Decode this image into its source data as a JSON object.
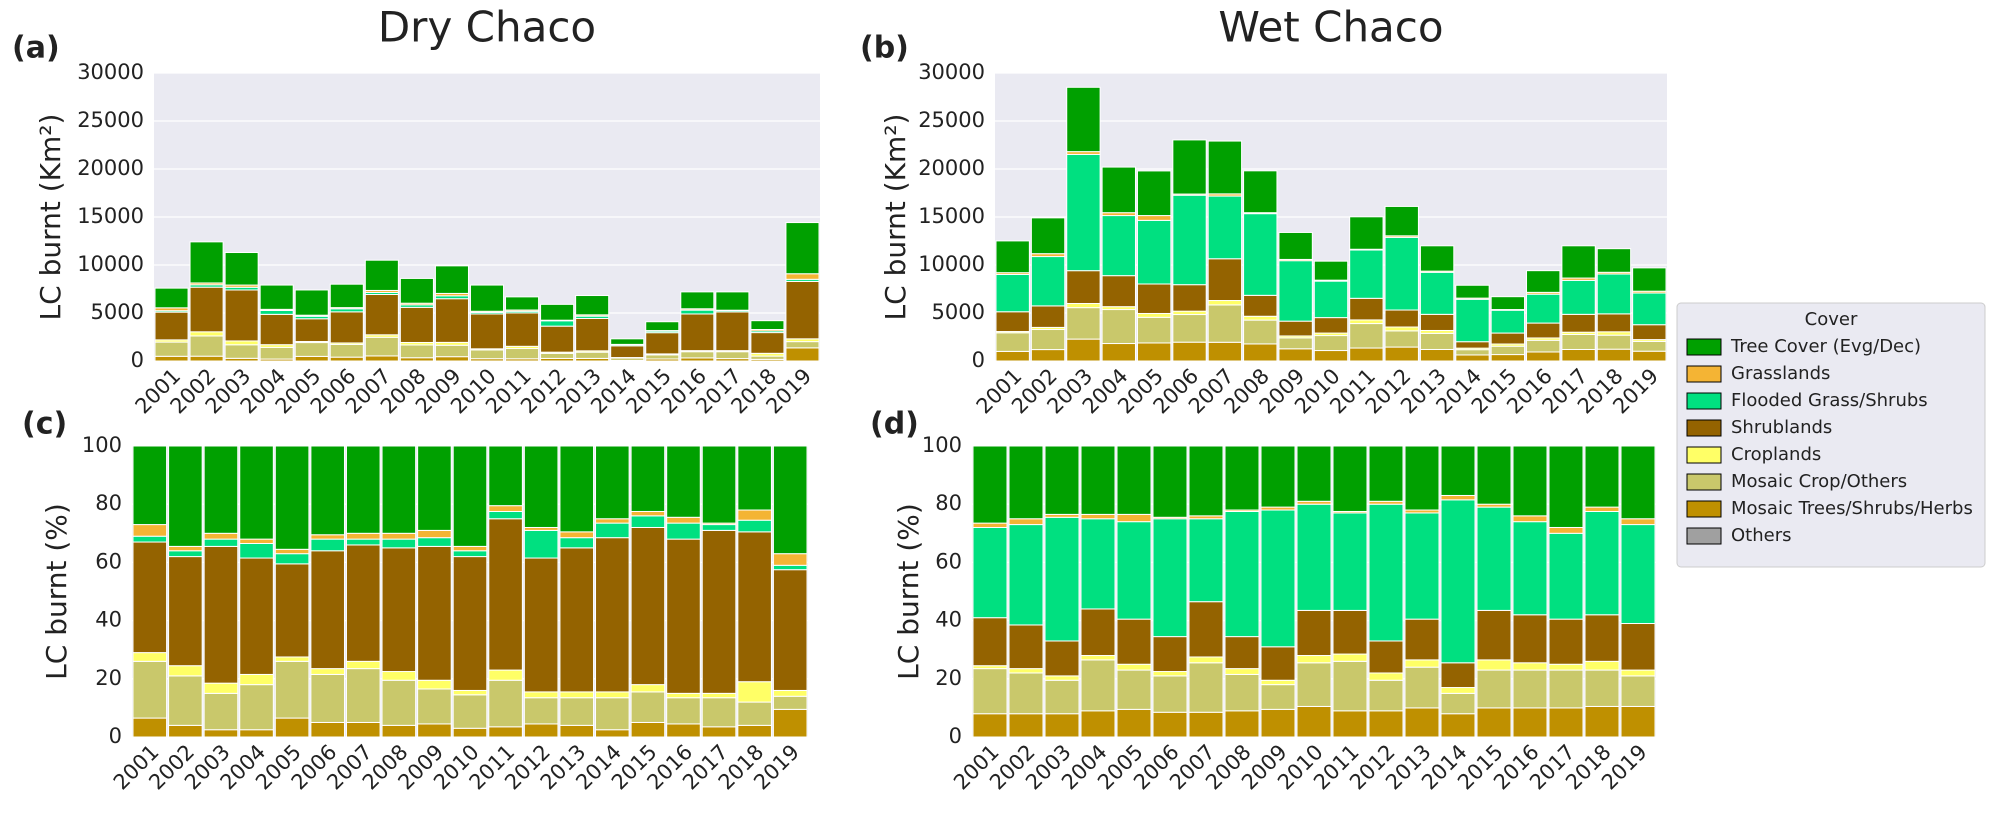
{
  "chart_data": [
    {
      "type": "bar",
      "stacked": true,
      "panel_label": "(a)",
      "title": "Dry Chaco",
      "ylabel": "LC burnt (Km²)",
      "categories": [
        "2001",
        "2002",
        "2003",
        "2004",
        "2005",
        "2006",
        "2007",
        "2008",
        "2009",
        "2010",
        "2011",
        "2012",
        "2013",
        "2014",
        "2015",
        "2016",
        "2017",
        "2018",
        "2019"
      ],
      "ylim": [
        0,
        30000
      ],
      "yticks": [
        0,
        5000,
        10000,
        15000,
        20000,
        25000,
        30000
      ],
      "grid": true,
      "series": [
        {
          "color": "#a0a0a0",
          "values": [
            0,
            0,
            0,
            0,
            0,
            0,
            0,
            0,
            0,
            0,
            0,
            0,
            0,
            0,
            0,
            0,
            0,
            0,
            0
          ]
        },
        {
          "color": "#bf9000",
          "values": [
            490,
            500,
            280,
            200,
            480,
            400,
            530,
            340,
            450,
            240,
            230,
            270,
            270,
            60,
            210,
            320,
            250,
            170,
            1370
          ]
        },
        {
          "color": "#c9c86b",
          "values": [
            1480,
            2110,
            1410,
            1220,
            1440,
            1320,
            1940,
            1330,
            1190,
            910,
            1070,
            530,
            650,
            250,
            430,
            650,
            720,
            340,
            650
          ]
        },
        {
          "color": "#ffff66",
          "values": [
            230,
            430,
            400,
            280,
            110,
            160,
            260,
            260,
            300,
            120,
            230,
            120,
            140,
            50,
            100,
            110,
            110,
            290,
            290
          ]
        },
        {
          "color": "#946300",
          "values": [
            2890,
            4650,
            5310,
            3160,
            2370,
            3240,
            4200,
            3660,
            4550,
            3630,
            3480,
            2710,
            3370,
            1220,
            2210,
            3820,
            4030,
            2160,
            5980
          ]
        },
        {
          "color": "#00e080",
          "values": [
            150,
            250,
            280,
            400,
            260,
            320,
            210,
            260,
            300,
            160,
            170,
            560,
            240,
            120,
            160,
            400,
            140,
            170,
            220
          ]
        },
        {
          "color": "#f4b434",
          "values": [
            300,
            190,
            230,
            120,
            110,
            120,
            210,
            170,
            250,
            120,
            130,
            60,
            140,
            30,
            60,
            140,
            40,
            150,
            580
          ]
        },
        {
          "color": "#00a000",
          "values": [
            2050,
            4280,
            3390,
            2530,
            2630,
            2440,
            3150,
            2580,
            2870,
            2730,
            1370,
            1650,
            2010,
            580,
            920,
            1760,
            1910,
            920,
            5330
          ]
        }
      ]
    },
    {
      "type": "bar",
      "stacked": true,
      "panel_label": "(b)",
      "title": "Wet Chaco",
      "ylabel": "LC burnt (Km²)",
      "legend_title": "Cover",
      "categories": [
        "2001",
        "2002",
        "2003",
        "2004",
        "2005",
        "2006",
        "2007",
        "2008",
        "2009",
        "2010",
        "2011",
        "2012",
        "2013",
        "2014",
        "2015",
        "2016",
        "2017",
        "2018",
        "2019"
      ],
      "ylim": [
        0,
        30000
      ],
      "yticks": [
        0,
        5000,
        10000,
        15000,
        20000,
        25000,
        30000
      ],
      "grid": true,
      "series": [
        {
          "name": "Others",
          "color": "#a0a0a0",
          "values": [
            0,
            0,
            0,
            0,
            0,
            0,
            0,
            0,
            0,
            0,
            0,
            0,
            0,
            0,
            0,
            0,
            0,
            0,
            0
          ]
        },
        {
          "name": "Mosaic Trees/Shrubs/Herbs",
          "color": "#bf9000",
          "values": [
            1000,
            1190,
            2280,
            1820,
            1880,
            1960,
            1950,
            1780,
            1270,
            1090,
            1350,
            1450,
            1200,
            630,
            670,
            940,
            1200,
            1230,
            1020
          ]
        },
        {
          "name": "Mosaic Crop/Others",
          "color": "#c9c86b",
          "values": [
            1940,
            2090,
            3280,
            3540,
            2670,
            2880,
            3890,
            2480,
            1140,
            1560,
            2550,
            1690,
            1680,
            550,
            870,
            1220,
            1560,
            1460,
            1020
          ]
        },
        {
          "name": "Croplands",
          "color": "#ffff66",
          "values": [
            130,
            220,
            430,
            300,
            400,
            350,
            460,
            400,
            200,
            260,
            380,
            400,
            300,
            160,
            230,
            240,
            240,
            350,
            190
          ]
        },
        {
          "name": "Shrublands",
          "color": "#946300",
          "values": [
            2060,
            2240,
            3420,
            3230,
            3070,
            2760,
            4350,
            2180,
            1540,
            1610,
            2250,
            1770,
            1680,
            670,
            1140,
            1550,
            1860,
            1870,
            1550
          ]
        },
        {
          "name": "Flooded Grass/Shrubs",
          "color": "#00e080",
          "values": [
            3880,
            5140,
            12110,
            6260,
            6630,
            9320,
            6530,
            8510,
            6300,
            3800,
            5030,
            7570,
            4380,
            4420,
            2380,
            3010,
            3540,
            4150,
            3300
          ]
        },
        {
          "name": "Grasslands",
          "color": "#f4b434",
          "values": [
            190,
            300,
            290,
            300,
            500,
            120,
            230,
            100,
            130,
            100,
            80,
            160,
            120,
            120,
            70,
            190,
            240,
            180,
            190
          ]
        },
        {
          "name": "Tree Cover (Evg/Dec)",
          "color": "#00a000",
          "values": [
            3310,
            3730,
            6700,
            4750,
            4650,
            5640,
            5500,
            4360,
            2810,
            1980,
            3380,
            3060,
            2640,
            1340,
            1340,
            2260,
            3360,
            2460,
            2430
          ]
        }
      ]
    },
    {
      "type": "bar",
      "stacked": true,
      "panel_label": "(c)",
      "ylabel": "LC burnt (%)",
      "categories": [
        "2001",
        "2002",
        "2003",
        "2004",
        "2005",
        "2006",
        "2007",
        "2008",
        "2009",
        "2010",
        "2011",
        "2012",
        "2013",
        "2014",
        "2015",
        "2016",
        "2017",
        "2018",
        "2019"
      ],
      "ylim": [
        0,
        100
      ],
      "yticks": [
        0,
        20,
        40,
        60,
        80,
        100
      ],
      "grid": true,
      "series": [
        {
          "color": "#a0a0a0",
          "values": [
            0,
            0,
            0,
            0,
            0,
            0,
            0,
            0,
            0,
            0,
            0,
            0,
            0,
            0,
            0,
            0,
            0,
            0,
            0
          ]
        },
        {
          "color": "#bf9000",
          "values": [
            6.5,
            4,
            2.5,
            2.5,
            6.5,
            5,
            5,
            4,
            4.5,
            3,
            3.5,
            4.5,
            4,
            2.5,
            5,
            4.5,
            3.5,
            4,
            9.5
          ]
        },
        {
          "color": "#c9c86b",
          "values": [
            19.5,
            17,
            12.5,
            15.5,
            19.5,
            16.5,
            18.5,
            15.5,
            12,
            11.5,
            16,
            9,
            9.5,
            11,
            10.5,
            9,
            10,
            8,
            4.5
          ]
        },
        {
          "color": "#ffff66",
          "values": [
            3,
            3.5,
            3.5,
            3.5,
            1.5,
            2,
            2.5,
            3,
            3,
            1.5,
            3.5,
            2,
            2,
            2,
            2.5,
            1.5,
            1.5,
            7,
            2
          ]
        },
        {
          "color": "#946300",
          "values": [
            38,
            37.5,
            47,
            40,
            32,
            40.5,
            40,
            42.5,
            46,
            46,
            52,
            46,
            49.5,
            53,
            54,
            53,
            56,
            51.5,
            41.5
          ]
        },
        {
          "color": "#00e080",
          "values": [
            2,
            2,
            2.5,
            5,
            3.5,
            4,
            2,
            3,
            3,
            2,
            2.5,
            9.5,
            3.5,
            5,
            4,
            5.5,
            2,
            4,
            1.5
          ]
        },
        {
          "color": "#f4b434",
          "values": [
            4,
            1.5,
            2,
            1.5,
            1.5,
            1.5,
            2,
            2,
            2.5,
            1.5,
            2,
            1,
            2,
            1.5,
            1.5,
            2,
            0.5,
            3.5,
            4
          ]
        },
        {
          "color": "#00a000",
          "values": [
            27,
            34.5,
            30,
            32,
            35.5,
            30.5,
            30,
            30,
            29,
            34.5,
            20.5,
            28,
            29.5,
            25,
            22.5,
            24.5,
            26.5,
            22,
            37
          ]
        }
      ]
    },
    {
      "type": "bar",
      "stacked": true,
      "panel_label": "(d)",
      "ylabel": "LC burnt (%)",
      "categories": [
        "2001",
        "2002",
        "2003",
        "2004",
        "2005",
        "2006",
        "2007",
        "2008",
        "2009",
        "2010",
        "2011",
        "2012",
        "2013",
        "2014",
        "2015",
        "2016",
        "2017",
        "2018",
        "2019"
      ],
      "ylim": [
        0,
        100
      ],
      "yticks": [
        0,
        20,
        40,
        60,
        80,
        100
      ],
      "grid": true,
      "series": [
        {
          "color": "#a0a0a0",
          "values": [
            0,
            0,
            0,
            0,
            0,
            0,
            0,
            0,
            0,
            0,
            0,
            0,
            0,
            0,
            0,
            0,
            0,
            0,
            0
          ]
        },
        {
          "color": "#bf9000",
          "values": [
            8,
            8,
            8,
            9,
            9.5,
            8.5,
            8.5,
            9,
            9.5,
            10.5,
            9,
            9,
            10,
            8,
            10,
            10,
            10,
            10.5,
            10.5
          ]
        },
        {
          "color": "#c9c86b",
          "values": [
            15.5,
            14,
            11.5,
            17.5,
            13.5,
            12.5,
            17,
            12.5,
            8.5,
            15,
            17,
            10.5,
            14,
            7,
            13,
            13,
            13,
            12.5,
            10.5
          ]
        },
        {
          "color": "#ffff66",
          "values": [
            1,
            1.5,
            1.5,
            1.5,
            2,
            1.5,
            2,
            2,
            1.5,
            2.5,
            2.5,
            2.5,
            2.5,
            2,
            3.5,
            2.5,
            2,
            3,
            2
          ]
        },
        {
          "color": "#946300",
          "values": [
            16.5,
            15,
            12,
            16,
            15.5,
            12,
            19,
            11,
            11.5,
            15.5,
            15,
            11,
            14,
            8.5,
            17,
            16.5,
            15.5,
            16,
            16
          ]
        },
        {
          "color": "#00e080",
          "values": [
            31,
            34.5,
            42.5,
            31,
            33.5,
            40.5,
            28.5,
            43,
            47,
            36.5,
            33.5,
            47,
            36.5,
            56,
            35.5,
            32,
            29.5,
            35.5,
            34
          ]
        },
        {
          "color": "#f4b434",
          "values": [
            1.5,
            2,
            1,
            1.5,
            2.5,
            0.5,
            1,
            0.5,
            1,
            1,
            0.5,
            1,
            1,
            1.5,
            1,
            2,
            2,
            1.5,
            2
          ]
        },
        {
          "color": "#00a000",
          "values": [
            26.5,
            25,
            23.5,
            23.5,
            23.5,
            24.5,
            24,
            22,
            21,
            19,
            22.5,
            19,
            22,
            17,
            20,
            24,
            28,
            21,
            25
          ]
        }
      ]
    }
  ]
}
